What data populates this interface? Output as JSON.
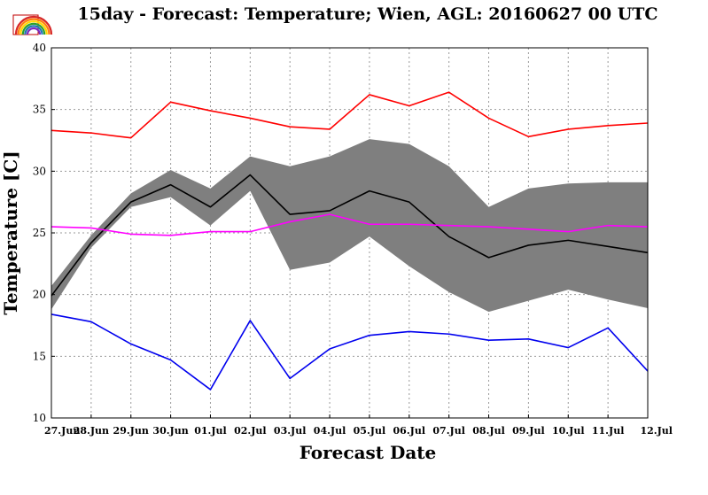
{
  "chart_data": {
    "type": "line",
    "title": "15day - Forecast: Temperature; Wien, AGL: 20160627 00 UTC",
    "xlabel": "Forecast Date",
    "ylabel": "Temperature [C]",
    "ylim": [
      10,
      40
    ],
    "yticks": [
      10,
      15,
      20,
      25,
      30,
      35,
      40
    ],
    "categories": [
      "27.Jun",
      "28.Jun",
      "29.Jun",
      "30.Jun",
      "01.Jul",
      "02.Jul",
      "03.Jul",
      "04.Jul",
      "05.Jul",
      "06.Jul",
      "07.Jul",
      "08.Jul",
      "09.Jul",
      "10.Jul",
      "11.Jul",
      "12.Jul"
    ],
    "grid": true,
    "band": {
      "color": "#7f7f7f",
      "upper": [
        20.7,
        24.8,
        28.2,
        30.1,
        28.6,
        31.2,
        30.4,
        31.2,
        32.6,
        32.2,
        30.4,
        27.1,
        28.6,
        29.0,
        29.1,
        29.1
      ],
      "lower": [
        18.8,
        23.8,
        27.1,
        27.9,
        25.6,
        28.4,
        22.0,
        22.6,
        24.7,
        22.3,
        20.2,
        18.6,
        19.5,
        20.4,
        19.6,
        18.9
      ]
    },
    "series": [
      {
        "color": "#ff0000",
        "values": [
          33.3,
          33.1,
          32.7,
          35.6,
          34.9,
          34.3,
          33.6,
          33.4,
          36.2,
          35.3,
          36.4,
          34.3,
          32.8,
          33.4,
          33.7,
          33.9
        ]
      },
      {
        "color": "#000000",
        "values": [
          19.9,
          24.2,
          27.5,
          28.9,
          27.1,
          29.7,
          26.5,
          26.8,
          28.4,
          27.5,
          24.7,
          23.0,
          24.0,
          24.4,
          23.9,
          23.4
        ]
      },
      {
        "color": "#ff00ff",
        "values": [
          25.5,
          25.4,
          24.9,
          24.8,
          25.1,
          25.1,
          25.9,
          26.5,
          25.7,
          25.7,
          25.6,
          25.5,
          25.3,
          25.1,
          25.6,
          25.5
        ]
      },
      {
        "color": "#0000ee",
        "values": [
          18.4,
          17.8,
          16.0,
          14.7,
          12.3,
          17.9,
          13.2,
          15.6,
          16.7,
          17.0,
          16.8,
          16.3,
          16.4,
          15.7,
          17.3,
          13.8
        ]
      }
    ]
  },
  "logo": {
    "icon": "rainbow-logo-icon",
    "colors": [
      "#d62728",
      "#ff7f0e",
      "#ffd700",
      "#2ca02c",
      "#1f77b4",
      "#7b2cbf"
    ]
  }
}
